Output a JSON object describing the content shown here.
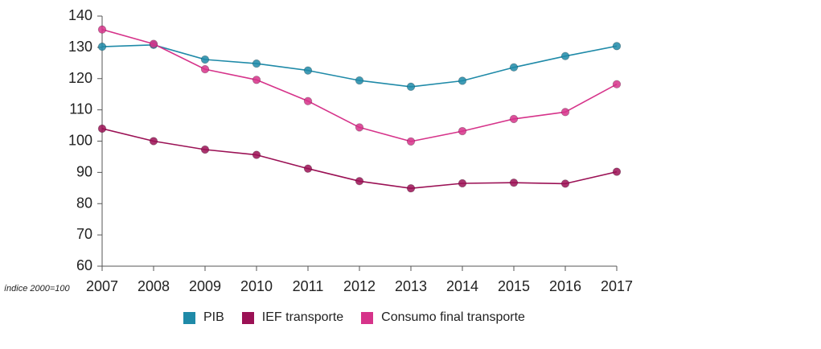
{
  "chart_data": {
    "type": "line",
    "title": "",
    "xlabel": "",
    "ylabel": "",
    "axis_note": "índice 2000=100",
    "x": [
      "2007",
      "2008",
      "2009",
      "2010",
      "2011",
      "2012",
      "2013",
      "2014",
      "2015",
      "2016",
      "2017"
    ],
    "ylim": [
      60,
      140
    ],
    "yticks": [
      "60",
      "70",
      "80",
      "90",
      "100",
      "110",
      "120",
      "130",
      "140"
    ],
    "grid": false,
    "legend_position": "bottom",
    "series": [
      {
        "name": "PIB",
        "color": "#1f8aa8",
        "values": [
          130.2,
          130.8,
          126.1,
          124.8,
          122.6,
          119.4,
          117.4,
          119.3,
          123.6,
          127.2,
          130.4
        ]
      },
      {
        "name": "IEF transporte",
        "color": "#9b1155",
        "values": [
          104.0,
          100.0,
          97.3,
          95.6,
          91.2,
          87.2,
          84.9,
          86.5,
          86.7,
          86.4,
          90.2
        ]
      },
      {
        "name": "Consumo final transporte",
        "color": "#d6338a",
        "values": [
          135.7,
          131.1,
          123.0,
          119.6,
          112.8,
          104.4,
          99.9,
          103.2,
          107.1,
          109.3,
          118.2
        ]
      }
    ]
  }
}
